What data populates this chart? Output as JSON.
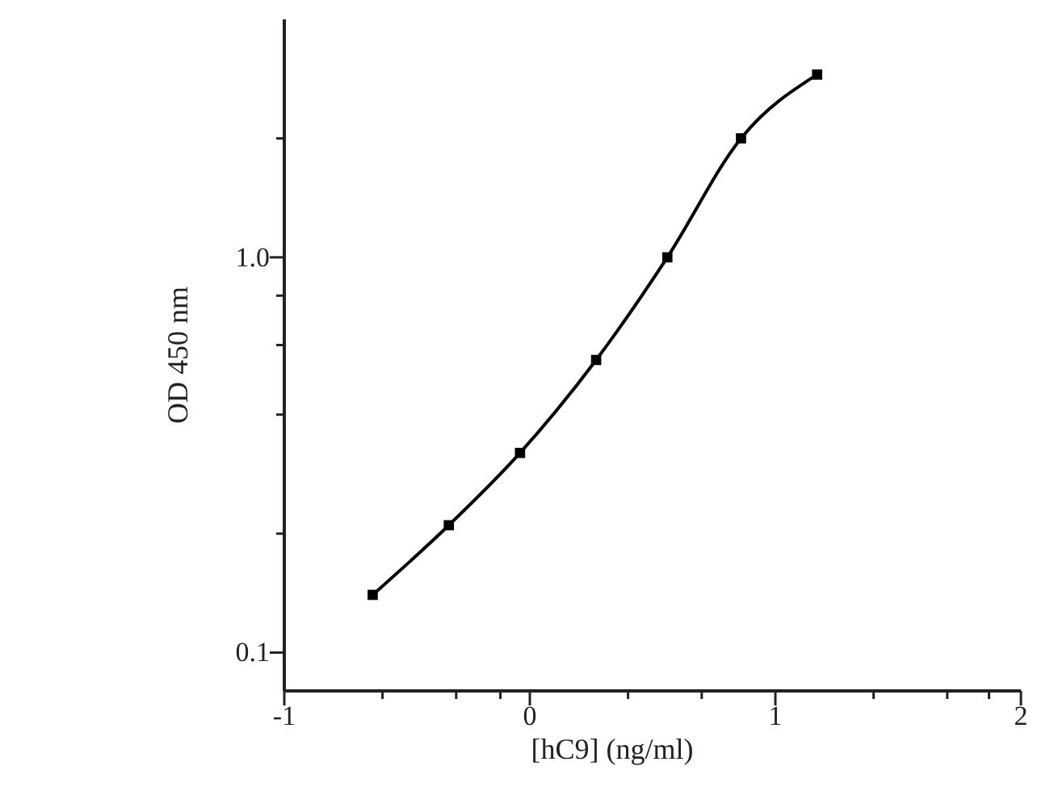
{
  "chart_data": {
    "type": "line",
    "xlabel": "[hC9] (ng/ml)",
    "ylabel": "OD 450 nm",
    "log": "y",
    "marker": "square",
    "grid": false,
    "xlim": [
      -1,
      2
    ],
    "ylim": [
      0.08,
      4
    ],
    "xticks": [
      -1,
      {
        "value": -0.6,
        "label": null
      },
      {
        "value": -0.3,
        "label": null
      },
      {
        "value": -0.12,
        "label": null
      },
      0,
      {
        "value": 0.4,
        "label": null
      },
      {
        "value": 0.7,
        "label": null
      },
      1,
      {
        "value": 1.4,
        "label": null
      },
      {
        "value": 1.7,
        "label": null
      },
      {
        "value": 1.87,
        "label": null
      },
      2
    ],
    "yticks": [
      0.1,
      {
        "value": 0.2,
        "label": null
      },
      {
        "value": 0.4,
        "label": null
      },
      {
        "value": 0.6,
        "label": null
      },
      {
        "value": 0.8,
        "label": null
      },
      {
        "value": 1,
        "label": "1.0"
      },
      {
        "value": 2,
        "label": null
      }
    ],
    "series": [
      {
        "color": "#000000",
        "x": [
          -0.64,
          -0.33,
          -0.04,
          0.27,
          0.56,
          0.86,
          1.17
        ],
        "values": [
          0.14,
          0.21,
          0.32,
          0.55,
          1.0,
          2.0,
          2.9
        ]
      }
    ]
  }
}
